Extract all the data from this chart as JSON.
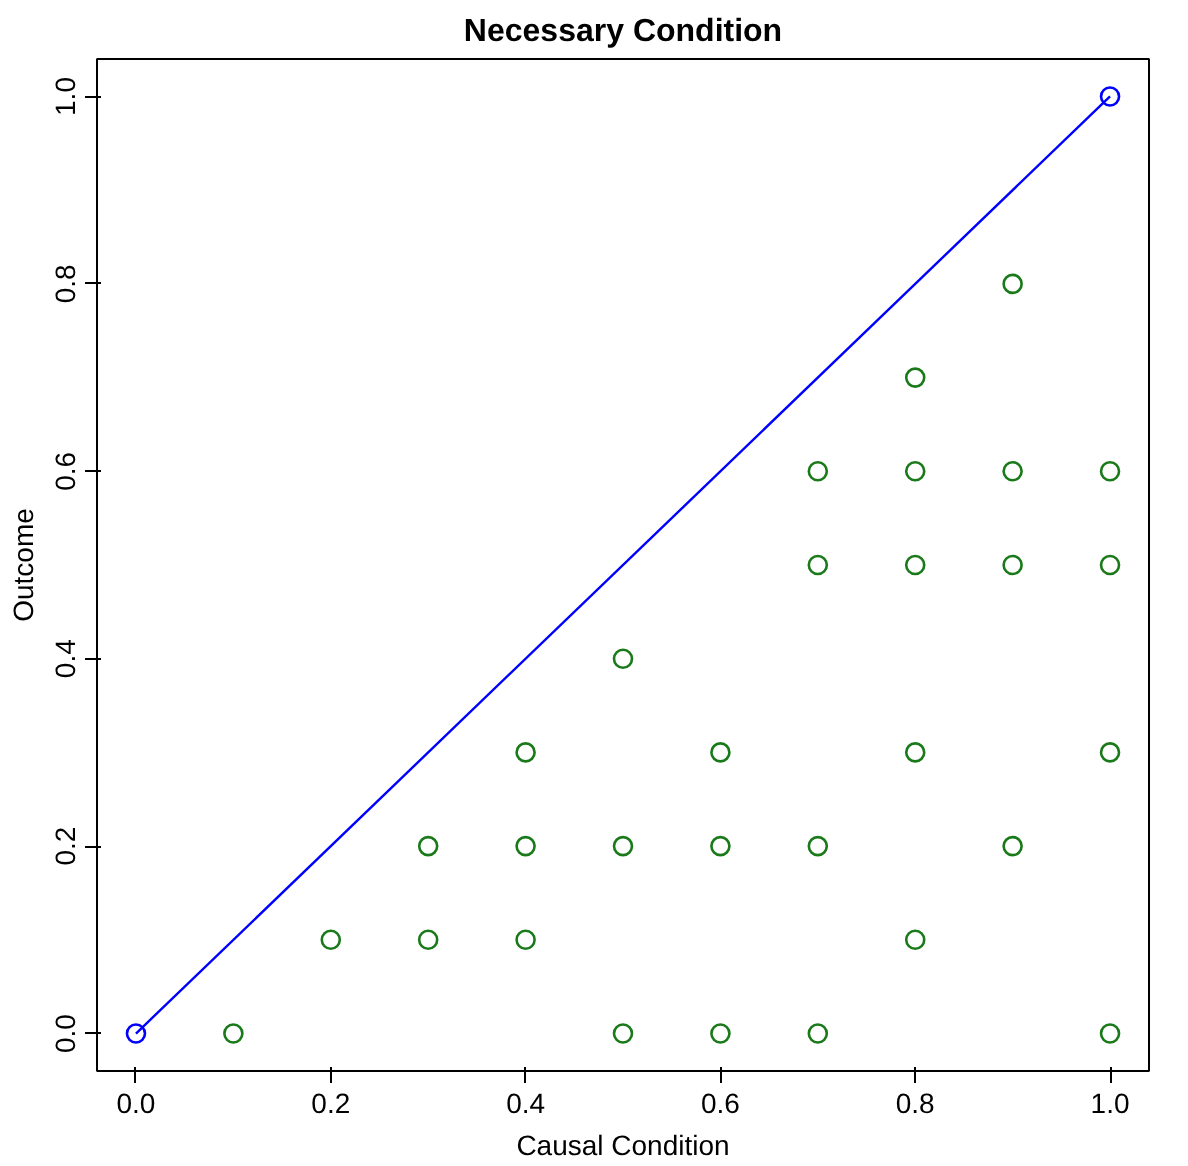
{
  "chart_data": {
    "type": "scatter",
    "title": "Necessary Condition",
    "xlabel": "Causal Condition",
    "ylabel": "Outcome",
    "xlim": [
      -0.04,
      1.04
    ],
    "ylim": [
      -0.04,
      1.04
    ],
    "xticks": [
      {
        "value": 0,
        "label": "0.0"
      },
      0.2,
      0.4,
      0.6,
      0.8,
      {
        "value": 1,
        "label": "1.0"
      }
    ],
    "yticks": [
      {
        "value": 0,
        "label": "0.0"
      },
      0.2,
      0.4,
      0.6,
      0.8,
      {
        "value": 1,
        "label": "1.0"
      }
    ],
    "grid": false,
    "marker": "circle",
    "series": [
      {
        "color": "#1a7a1a",
        "x": [
          0.1,
          0.2,
          0.3,
          0.3,
          0.4,
          0.4,
          0.4,
          0.5,
          0.5,
          0.5,
          0.6,
          0.6,
          0.6,
          0.7,
          0.7,
          0.7,
          0.7,
          0.8,
          0.8,
          0.8,
          0.8,
          0.8,
          0.9,
          0.9,
          0.9,
          0.9,
          1.0,
          1.0,
          1.0,
          1.0
        ],
        "values": [
          0,
          0.1,
          0.1,
          0.2,
          0.1,
          0.2,
          0.3,
          0,
          0.2,
          0.4,
          0,
          0.2,
          0.3,
          0,
          0.2,
          0.5,
          0.6,
          0.1,
          0.3,
          0.5,
          0.6,
          0.7,
          0.2,
          0.5,
          0.6,
          0.8,
          0,
          0.3,
          0.5,
          0.6
        ]
      },
      {
        "color": "#0000ff",
        "x": [
          0,
          1
        ],
        "values": [
          0,
          1
        ]
      },
      {
        "type": "line",
        "marker": "none",
        "color": "#0000ff",
        "x": [
          0,
          1
        ],
        "values": [
          0,
          1
        ]
      }
    ]
  }
}
